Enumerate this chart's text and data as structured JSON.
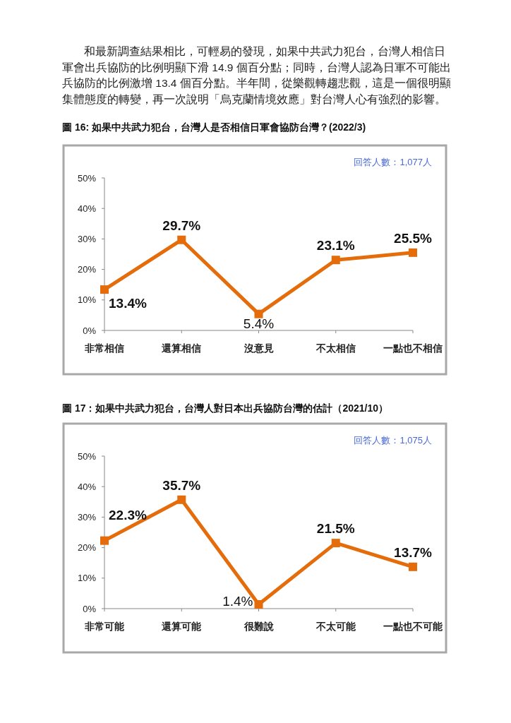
{
  "chart_data": [
    {
      "type": "other",
      "annotations": [
        "和最新調查結果相比，可輕易的發現，如果中共武力犯台，台灣人相信日軍會出兵協防的比例明顯下滑 14.9 個百分點；同時，台灣人認為日軍不可能出兵協防的比例激增 13.4 個百分點。半年間，從樂觀轉趨悲觀，這是一個很明顯集體態度的轉變，再一次說明「烏克蘭情境效應」對台灣人心有強烈的影響。"
      ]
    },
    {
      "type": "line",
      "title": "圖 16:  如果中共武力犯台，台灣人是否相信日軍會協防台灣？(2022/3)",
      "annotations": [
        "回答人數：1,077人"
      ],
      "categories": [
        "非常相信",
        "還算相信",
        "沒意見",
        "不太相信",
        "一點也不相信"
      ],
      "series": [
        {
          "color": "#e46c0a",
          "values": [
            13.4,
            29.7,
            5.4,
            23.1,
            25.5
          ],
          "value_labels": [
            "13.4%",
            "29.7%",
            "5.4%",
            "23.1%",
            "25.5%"
          ]
        }
      ],
      "ylim": [
        0,
        50
      ],
      "yticks": [
        {
          "value": 0,
          "label": "0%"
        },
        {
          "value": 10,
          "label": "10%"
        },
        {
          "value": 20,
          "label": "20%"
        },
        {
          "value": 30,
          "label": "30%"
        },
        {
          "value": 40,
          "label": "40%"
        },
        {
          "value": 50,
          "label": "50%"
        }
      ],
      "marker": "square"
    },
    {
      "type": "line",
      "title": "圖 17：如果中共武力犯台，台灣人對日本出兵協防台灣的估計（2021/10）",
      "annotations": [
        "回答人數：1,075人"
      ],
      "categories": [
        "非常可能",
        "還算可能",
        "很難說",
        "不太可能",
        "一點也不可能"
      ],
      "series": [
        {
          "color": "#e46c0a",
          "values": [
            22.3,
            35.7,
            1.4,
            21.5,
            13.7
          ],
          "value_labels": [
            "22.3%",
            "35.7%",
            "1.4%",
            "21.5%",
            "13.7%"
          ]
        }
      ],
      "ylim": [
        0,
        50
      ],
      "yticks": [
        {
          "value": 0,
          "label": "0%"
        },
        {
          "value": 10,
          "label": "10%"
        },
        {
          "value": 20,
          "label": "20%"
        },
        {
          "value": 30,
          "label": "30%"
        },
        {
          "value": 40,
          "label": "40%"
        },
        {
          "value": 50,
          "label": "50%"
        }
      ],
      "marker": "square"
    }
  ]
}
